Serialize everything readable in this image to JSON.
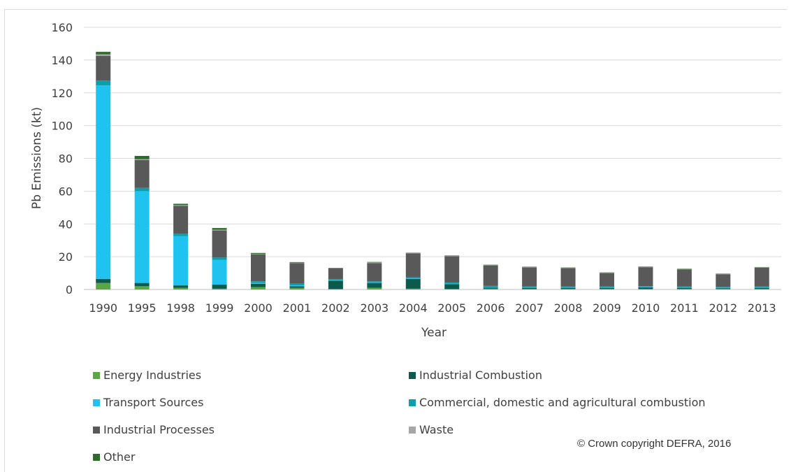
{
  "chart_data": {
    "type": "bar",
    "stacked": true,
    "categories": [
      "1990",
      "1995",
      "1998",
      "1999",
      "2000",
      "2001",
      "2002",
      "2003",
      "2004",
      "2005",
      "2006",
      "2007",
      "2008",
      "2009",
      "2010",
      "2011",
      "2012",
      "2013"
    ],
    "xlabel": "Year",
    "ylabel": "Pb Emissions (kt)",
    "ylim": [
      0,
      160
    ],
    "yticks": [
      "0",
      "20",
      "40",
      "60",
      "80",
      "100",
      "120",
      "140",
      "160"
    ],
    "grid": true,
    "legend_position": "bottom",
    "series": [
      {
        "name": "Energy Industries",
        "color": "#5aa844",
        "values": [
          4,
          2,
          1,
          0.5,
          1.5,
          1,
          0.3,
          1,
          0.5,
          0.3,
          0.5,
          0.3,
          0.3,
          0.3,
          0.3,
          0.3,
          0.3,
          0.3
        ]
      },
      {
        "name": "Industrial Combustion",
        "color": "#0b5a4c",
        "values": [
          2.5,
          2,
          1.5,
          2.5,
          2,
          1,
          5,
          3,
          6,
          3,
          0.7,
          0.7,
          0.7,
          0.7,
          1,
          0.7,
          0.5,
          0.7
        ]
      },
      {
        "name": "Transport Sources",
        "color": "#1fc3f0",
        "values": [
          118,
          56,
          30,
          15,
          0.5,
          0.5,
          0.3,
          0.3,
          0.3,
          0.3,
          0.3,
          0.3,
          0.3,
          0.3,
          0.3,
          0.3,
          0.3,
          0.3
        ]
      },
      {
        "name": "Commercial, domestic and agricultural combustion",
        "color": "#0b9eab",
        "values": [
          3,
          2,
          1.5,
          1.5,
          1,
          1,
          0.7,
          0.7,
          0.7,
          0.7,
          0.7,
          0.5,
          0.5,
          0.5,
          0.5,
          0.5,
          0.5,
          0.5
        ]
      },
      {
        "name": "Industrial Processes",
        "color": "#595959",
        "values": [
          15,
          17,
          17,
          16.5,
          16.5,
          12.5,
          6.5,
          11,
          14.5,
          16,
          12.5,
          11.7,
          11.2,
          8.2,
          11.5,
          10.5,
          7.7,
          11.5
        ]
      },
      {
        "name": "Waste",
        "color": "#a6a6a6",
        "values": [
          1,
          0.5,
          0.5,
          0.5,
          0.3,
          0.3,
          0.2,
          0.5,
          0.2,
          0.3,
          0.2,
          0.2,
          0.2,
          0.2,
          0.2,
          0.2,
          0.2,
          0.2
        ]
      },
      {
        "name": "Other",
        "color": "#2d6b2a",
        "values": [
          1.5,
          2,
          0.8,
          1,
          0.5,
          0.4,
          0.2,
          0.3,
          0.2,
          0.2,
          0.2,
          0.2,
          0.2,
          0.2,
          0.2,
          0.2,
          0.2,
          0.2
        ]
      }
    ]
  },
  "copyright": "© Crown copyright DEFRA, 2016"
}
